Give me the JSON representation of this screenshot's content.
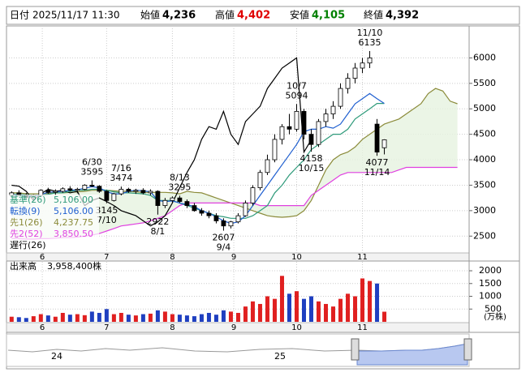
{
  "header": {
    "date_label": "日付",
    "datetime": "2025/11/17 11:30",
    "items": [
      {
        "label": "始値",
        "value": "4,236",
        "color": "#000000"
      },
      {
        "label": "高値",
        "value": "4,402",
        "color": "#e00000"
      },
      {
        "label": "安値",
        "value": "4,105",
        "color": "#008000"
      },
      {
        "label": "終値",
        "value": "4,392",
        "color": "#000000"
      }
    ]
  },
  "chart_data": {
    "type": "candlestick",
    "candles": [
      [
        3300,
        3380,
        3250,
        3350
      ],
      [
        3350,
        3400,
        3280,
        3300
      ],
      [
        3300,
        3350,
        3220,
        3260
      ],
      [
        3260,
        3320,
        3200,
        3300
      ],
      [
        3300,
        3420,
        3280,
        3400
      ],
      [
        3400,
        3450,
        3330,
        3360
      ],
      [
        3360,
        3420,
        3300,
        3380
      ],
      [
        3380,
        3460,
        3350,
        3430
      ],
      [
        3430,
        3480,
        3380,
        3400
      ],
      [
        3400,
        3450,
        3340,
        3420
      ],
      [
        3420,
        3520,
        3400,
        3500
      ],
      [
        3500,
        3595,
        3460,
        3480
      ],
      [
        3480,
        3500,
        3350,
        3380
      ],
      [
        3380,
        3400,
        3145,
        3200
      ],
      [
        3200,
        3350,
        3180,
        3330
      ],
      [
        3330,
        3474,
        3300,
        3420
      ],
      [
        3420,
        3450,
        3350,
        3380
      ],
      [
        3380,
        3430,
        3330,
        3400
      ],
      [
        3400,
        3440,
        3320,
        3350
      ],
      [
        3350,
        3420,
        3300,
        3380
      ],
      [
        3380,
        3400,
        2922,
        3100
      ],
      [
        3100,
        3250,
        3050,
        3200
      ],
      [
        3200,
        3280,
        3150,
        3250
      ],
      [
        3250,
        3295,
        3150,
        3180
      ],
      [
        3180,
        3220,
        3050,
        3100
      ],
      [
        3100,
        3150,
        2980,
        3000
      ],
      [
        3000,
        3050,
        2900,
        2950
      ],
      [
        2950,
        3000,
        2850,
        2900
      ],
      [
        2900,
        2950,
        2750,
        2800
      ],
      [
        2800,
        2850,
        2607,
        2700
      ],
      [
        2700,
        2800,
        2650,
        2780
      ],
      [
        2780,
        2950,
        2750,
        2900
      ],
      [
        2900,
        3200,
        2880,
        3150
      ],
      [
        3150,
        3500,
        3100,
        3450
      ],
      [
        3450,
        3800,
        3400,
        3750
      ],
      [
        3750,
        4100,
        3700,
        4000
      ],
      [
        4000,
        4500,
        3950,
        4400
      ],
      [
        4400,
        4700,
        4300,
        4650
      ],
      [
        4650,
        4900,
        4500,
        4600
      ],
      [
        4600,
        5094,
        4550,
        4950
      ],
      [
        4950,
        5000,
        4400,
        4500
      ],
      [
        4500,
        4600,
        4158,
        4300
      ],
      [
        4300,
        4800,
        4250,
        4750
      ],
      [
        4750,
        5000,
        4650,
        4900
      ],
      [
        4900,
        5150,
        4800,
        5050
      ],
      [
        5050,
        5500,
        5000,
        5400
      ],
      [
        5400,
        5700,
        5300,
        5600
      ],
      [
        5600,
        5900,
        5500,
        5800
      ],
      [
        5800,
        6000,
        5700,
        5900
      ],
      [
        5900,
        6135,
        5800,
        6000
      ],
      [
        4700,
        4800,
        4077,
        4150
      ],
      [
        4236,
        4402,
        4105,
        4392
      ]
    ],
    "series": [
      {
        "name": "基準(26)",
        "legend_value": "5,106.00",
        "color": "#2e9a7a",
        "values": [
          3320,
          3320,
          3310,
          3300,
          3300,
          3320,
          3350,
          3350,
          3380,
          3400,
          3400,
          3420,
          3420,
          3400,
          3370,
          3350,
          3350,
          3340,
          3330,
          3300,
          3200,
          3200,
          3200,
          3150,
          3100,
          3050,
          3000,
          2950,
          2900,
          2880,
          2850,
          2850,
          2850,
          2900,
          3000,
          3100,
          3350,
          3500,
          3700,
          3850,
          4000,
          4200,
          4300,
          4400,
          4500,
          4500,
          4600,
          4800,
          4900,
          5000,
          5106,
          5106
        ]
      },
      {
        "name": "転換(9)",
        "legend_value": "5,106.00",
        "color": "#1f5fd0",
        "values": [
          3300,
          3310,
          3290,
          3280,
          3320,
          3360,
          3370,
          3380,
          3400,
          3410,
          3440,
          3470,
          3450,
          3370,
          3330,
          3330,
          3380,
          3400,
          3390,
          3370,
          3200,
          3180,
          3190,
          3150,
          3120,
          3080,
          3000,
          2950,
          2880,
          2800,
          2750,
          2780,
          2900,
          3100,
          3300,
          3500,
          3700,
          3900,
          4100,
          4300,
          4550,
          4600,
          4600,
          4650,
          4620,
          4700,
          4900,
          5100,
          5200,
          5300,
          5200,
          5106
        ]
      },
      {
        "name": "先1(26)",
        "legend_value": "4,237.75",
        "color": "#8b8b3a",
        "values": [
          3350,
          3350,
          3330,
          3330,
          3330,
          3340,
          3350,
          3350,
          3360,
          3370,
          3380,
          3400,
          3400,
          3400,
          3390,
          3380,
          3380,
          3370,
          3360,
          3360,
          3360,
          3360,
          3350,
          3330,
          3380,
          3360,
          3350,
          3300,
          3250,
          3200,
          3150,
          3100,
          3050,
          3000,
          2950,
          2900,
          2880,
          2870,
          2880,
          2900,
          3000,
          3200,
          3500,
          3800,
          4000,
          4100,
          4150,
          4250,
          4400,
          4500,
          4600,
          4700,
          4750,
          4800,
          4900,
          5000,
          5100,
          5300,
          5400,
          5350,
          5150,
          5100
        ]
      },
      {
        "name": "先2(52)",
        "legend_value": "3,850.50",
        "color": "#e040e0",
        "values": [
          2450,
          2450,
          2440,
          2440,
          2450,
          2450,
          2460,
          2470,
          2470,
          2480,
          2500,
          2520,
          2550,
          2600,
          2650,
          2700,
          2720,
          2740,
          2760,
          2800,
          2850,
          2900,
          3000,
          3100,
          3150,
          3150,
          3150,
          3150,
          3150,
          3150,
          3150,
          3150,
          3150,
          3150,
          3100,
          3100,
          3100,
          3100,
          3100,
          3100,
          3100,
          3300,
          3400,
          3500,
          3600,
          3700,
          3750,
          3750,
          3750,
          3750,
          3750,
          3750,
          3750,
          3800,
          3850,
          3850,
          3850,
          3850,
          3850,
          3850,
          3850,
          3850
        ]
      },
      {
        "name": "遅行(26)",
        "color": "#000000",
        "values": [
          3500,
          3480,
          3380,
          3200,
          3330,
          3420,
          3380,
          3400,
          3350,
          3380,
          3100,
          3200,
          3250,
          3180,
          3100,
          3000,
          2950,
          2900,
          2800,
          2700,
          2780,
          2900,
          3150,
          3450,
          3750,
          4000,
          4400,
          4650,
          4600,
          4950,
          4500,
          4300,
          4750,
          4900,
          5050,
          5400,
          5600,
          5800,
          5900,
          6000,
          4150,
          4392,
          null,
          null,
          null,
          null,
          null,
          null,
          null,
          null,
          null,
          null
        ]
      }
    ],
    "annotations": [
      {
        "date": "6/30",
        "value": 3595
      },
      {
        "date": "7/16",
        "value": 3474
      },
      {
        "date": "7/10",
        "value": 3145
      },
      {
        "date": "8/13",
        "value": 3295
      },
      {
        "date": "8/1",
        "value": 2922
      },
      {
        "date": "9/4",
        "value": 2607
      },
      {
        "date": "10/7",
        "value": 5094
      },
      {
        "date": "10/15",
        "value": 4158
      },
      {
        "date": "11/10",
        "value": 6135
      },
      {
        "date": "11/14",
        "value": 4077
      }
    ],
    "xlim": [
      -0.7,
      62.6
    ],
    "xticks": [
      {
        "value": 4.2,
        "label": "6"
      },
      {
        "value": 13,
        "label": "7"
      },
      {
        "value": 22,
        "label": "8"
      },
      {
        "value": 30.4,
        "label": "9"
      },
      {
        "value": 39,
        "label": "10"
      },
      {
        "value": 48,
        "label": "11"
      }
    ],
    "ylim": [
      2170,
      6580
    ],
    "yticks": [
      2500,
      3000,
      3500,
      4000,
      4500,
      5000,
      5500,
      6000
    ],
    "grid": true,
    "volume": {
      "name": "出来高",
      "current": "3,958,400株",
      "unit": "(万株)",
      "values": [
        200,
        180,
        150,
        220,
        300,
        250,
        200,
        350,
        280,
        300,
        260,
        400,
        350,
        500,
        300,
        350,
        280,
        250,
        300,
        320,
        450,
        400,
        300,
        280,
        250,
        220,
        300,
        350,
        280,
        450,
        400,
        350,
        600,
        800,
        700,
        1000,
        900,
        1800,
        1100,
        1200,
        900,
        1000,
        800,
        700,
        600,
        900,
        1100,
        1000,
        1700,
        1600,
        1500,
        395.84
      ],
      "ylim": [
        0,
        2350
      ],
      "yticks": [
        500,
        1000,
        1500,
        2000
      ],
      "up_color": "#e02020",
      "down_color": "#1f3fc0"
    },
    "navigator": {
      "labels": [
        "24",
        "25"
      ]
    }
  }
}
